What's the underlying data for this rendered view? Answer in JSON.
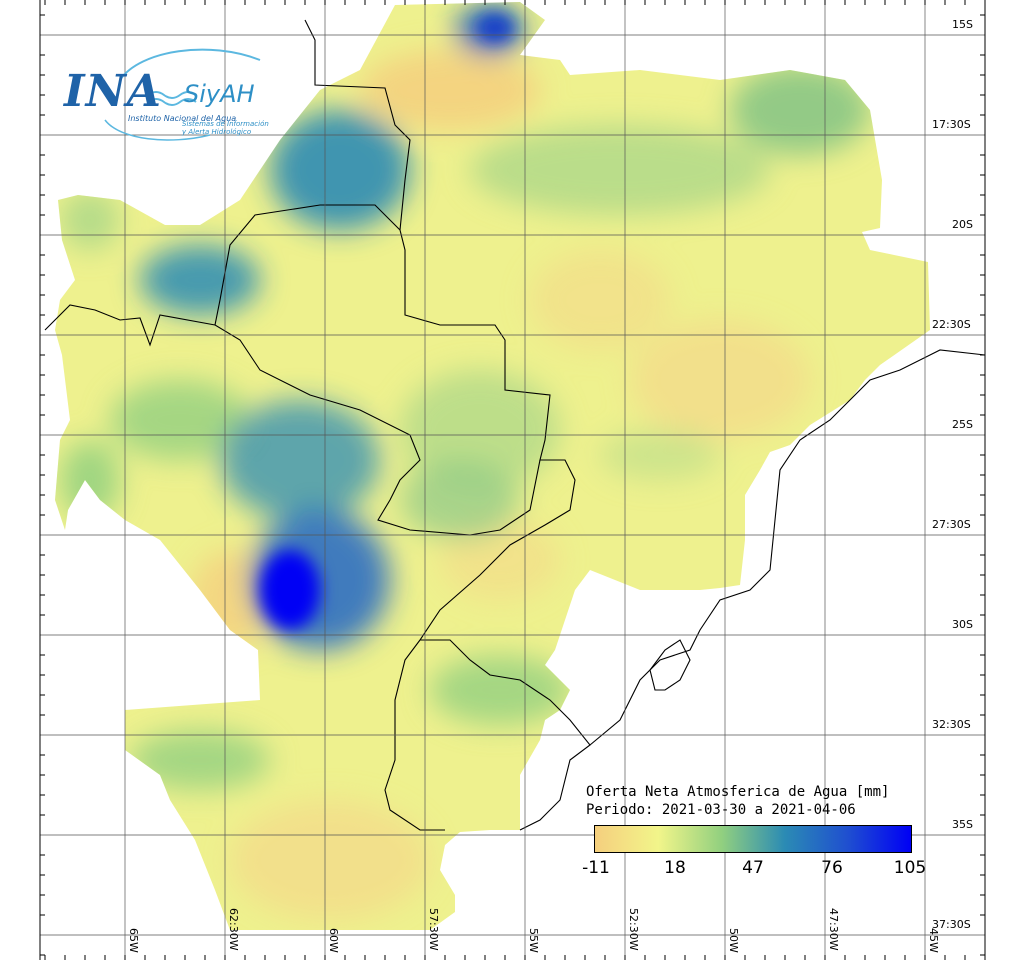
{
  "logo": {
    "main": "INA",
    "brand": "SiyAH",
    "institution": "Instituto Nacional del Agua",
    "system_line1": "Sistemas de Información",
    "system_line2": "y Alerta Hidrológico"
  },
  "legend": {
    "title": "Oferta Neta Atmosferica de Agua [mm]",
    "period": "Periodo: 2021-03-30 a 2021-04-06",
    "ticks": [
      "-11",
      "18",
      "47",
      "76",
      "105"
    ],
    "colors": [
      "#f5cf7e",
      "#f2f58a",
      "#92d07f",
      "#2b8bb4",
      "#1f4fd0",
      "#0000f5"
    ]
  },
  "grid": {
    "lat_labels": [
      "15S",
      "17:30S",
      "20S",
      "22:30S",
      "25S",
      "27:30S",
      "30S",
      "32:30S",
      "35S",
      "37:30S"
    ],
    "lon_labels": [
      "65W",
      "62:30W",
      "60W",
      "57:30W",
      "55W",
      "52:30W",
      "50W",
      "47:30W",
      "45W"
    ]
  }
}
